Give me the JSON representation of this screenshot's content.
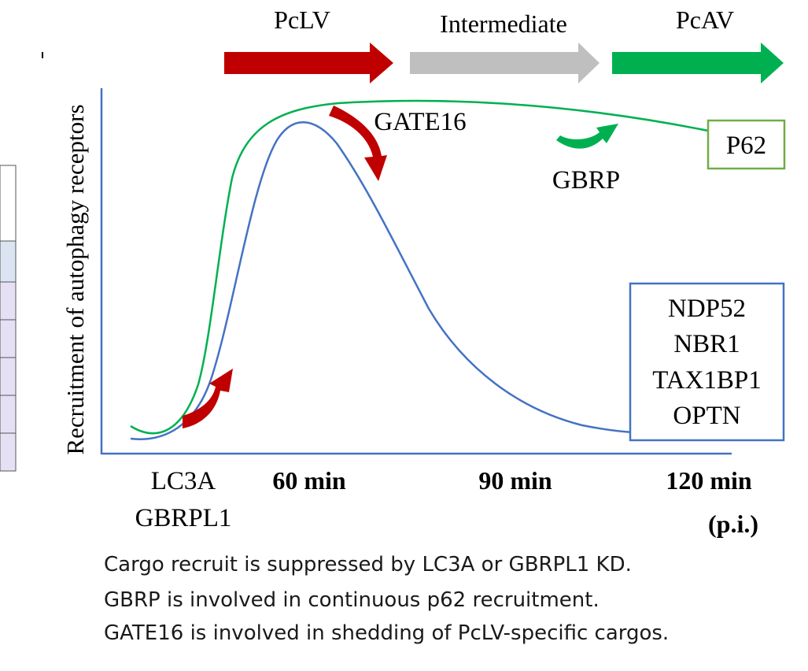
{
  "phases": {
    "pclv": "PcLV",
    "intermediate": "Intermediate",
    "pcav": "PcAV"
  },
  "y_axis_label": "Recruitment of autophagy receptors",
  "x_axis": {
    "left_label_1": "LC3A",
    "left_label_2": "GBRPL1",
    "tick_60": "60 min",
    "tick_90": "90 min",
    "tick_120": "120 min",
    "pi": "(p.i.)"
  },
  "annotations": {
    "gate16": "GATE16",
    "gbrp": "GBRP"
  },
  "p62_box": {
    "label": "P62"
  },
  "receptor_box": {
    "items": [
      "NDP52",
      "NBR1",
      "TAX1BP1",
      "OPTN"
    ]
  },
  "captions": [
    "Cargo recruit is suppressed by LC3A or GBRPL1 KD.",
    "GBRP is involved in continuous p62 recruitment.",
    "GATE16 is involved in shedding  of PcLV-specific cargos."
  ],
  "colors": {
    "pclv_arrow": "#c00000",
    "intermediate_arrow": "#bfbfbf",
    "pcav_arrow": "#00b050",
    "green_curve": "#00b050",
    "blue_curve": "#4472c4",
    "red_curved_arrow": "#c00000",
    "green_curved_arrow": "#00b050",
    "p62_box_border": "#70ad47",
    "receptor_box_border": "#4472c4",
    "axis": "#4472c4"
  }
}
